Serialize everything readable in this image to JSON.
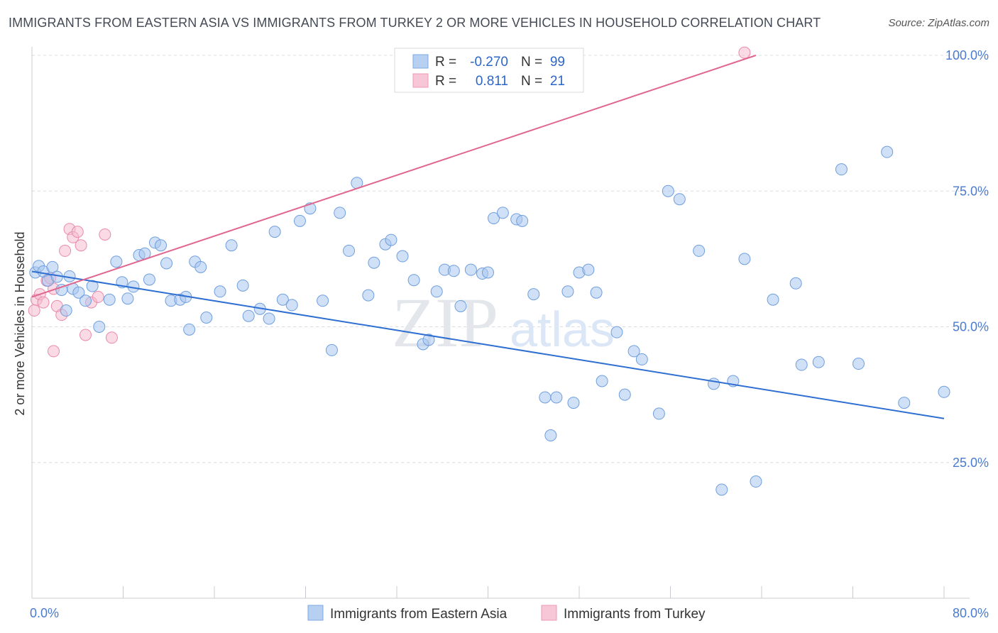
{
  "header": {
    "title": "IMMIGRANTS FROM EASTERN ASIA VS IMMIGRANTS FROM TURKEY 2 OR MORE VEHICLES IN HOUSEHOLD CORRELATION CHART",
    "source": "Source: ZipAtlas.com"
  },
  "watermark": {
    "zip": "ZIP",
    "atlas": "atlas"
  },
  "colors": {
    "blue_fill": "#a9c7ee",
    "blue_stroke": "#6f9fde",
    "blue_line": "#2e6fd1",
    "pink_fill": "#f6bcd0",
    "pink_stroke": "#ea8aab",
    "pink_line": "#e0668f",
    "grid": "#d9dde3",
    "tick_text": "#4a7bd0"
  },
  "stats": {
    "r_label": "R =",
    "n_label": "N =",
    "blue": {
      "r": "-0.270",
      "n": "99"
    },
    "pink": {
      "r": "0.811",
      "n": "21"
    }
  },
  "chart_data": {
    "type": "scatter",
    "ylabel": "2 or more Vehicles in Household",
    "xlabel": "",
    "xlim": [
      0,
      80
    ],
    "ylim": [
      0,
      100
    ],
    "x_tick_labels": [
      "0.0%",
      "80.0%"
    ],
    "y_ticks": [
      25,
      50,
      75,
      100
    ],
    "y_tick_labels": [
      "25.0%",
      "50.0%",
      "75.0%",
      "100.0%"
    ],
    "grid": true,
    "legend_position": "bottom-center",
    "series": [
      {
        "name": "Immigrants from Eastern Asia",
        "color": "#6f9fde",
        "trend": {
          "x": [
            0,
            80
          ],
          "y": [
            60.2,
            33.1
          ]
        },
        "points": [
          [
            0.3,
            60
          ],
          [
            0.6,
            61.2
          ],
          [
            1.0,
            60.2
          ],
          [
            1.4,
            58.5
          ],
          [
            1.8,
            61
          ],
          [
            2.2,
            59.2
          ],
          [
            2.6,
            56.8
          ],
          [
            3.0,
            53
          ],
          [
            3.3,
            59.3
          ],
          [
            3.6,
            57
          ],
          [
            4.1,
            56.3
          ],
          [
            4.7,
            54.8
          ],
          [
            5.3,
            57.5
          ],
          [
            5.9,
            50
          ],
          [
            6.8,
            55
          ],
          [
            7.4,
            62
          ],
          [
            7.9,
            58.2
          ],
          [
            8.4,
            55.2
          ],
          [
            8.9,
            57.4
          ],
          [
            9.4,
            63.2
          ],
          [
            9.9,
            63.5
          ],
          [
            10.3,
            58.7
          ],
          [
            10.8,
            65.5
          ],
          [
            11.3,
            65
          ],
          [
            11.8,
            61.7
          ],
          [
            12.2,
            54.8
          ],
          [
            13.0,
            55
          ],
          [
            13.5,
            55.5
          ],
          [
            13.8,
            49.5
          ],
          [
            14.3,
            62
          ],
          [
            14.8,
            61
          ],
          [
            15.3,
            51.7
          ],
          [
            16.5,
            56.5
          ],
          [
            17.5,
            65
          ],
          [
            18.5,
            57.6
          ],
          [
            19.0,
            52
          ],
          [
            20.0,
            53.3
          ],
          [
            20.8,
            51.5
          ],
          [
            21.3,
            67.5
          ],
          [
            22.0,
            55
          ],
          [
            22.8,
            54
          ],
          [
            23.5,
            69.5
          ],
          [
            24.4,
            71.8
          ],
          [
            25.5,
            54.8
          ],
          [
            26.3,
            45.7
          ],
          [
            27.0,
            71
          ],
          [
            27.8,
            64
          ],
          [
            28.5,
            76.5
          ],
          [
            29.5,
            55.8
          ],
          [
            30.0,
            61.8
          ],
          [
            31.0,
            65.2
          ],
          [
            31.5,
            66
          ],
          [
            32.5,
            63
          ],
          [
            33.5,
            58.6
          ],
          [
            34.3,
            46.8
          ],
          [
            34.8,
            47.6
          ],
          [
            35.5,
            56.5
          ],
          [
            36.2,
            60.5
          ],
          [
            37.0,
            60.3
          ],
          [
            37.6,
            53.8
          ],
          [
            38.5,
            60.5
          ],
          [
            39.5,
            59.8
          ],
          [
            40.0,
            60
          ],
          [
            40.5,
            70
          ],
          [
            41.3,
            71
          ],
          [
            42.5,
            69.8
          ],
          [
            43.0,
            69.5
          ],
          [
            44.0,
            56
          ],
          [
            45.0,
            37
          ],
          [
            45.5,
            30
          ],
          [
            46.0,
            37
          ],
          [
            47.0,
            56.5
          ],
          [
            47.5,
            36
          ],
          [
            48.0,
            60
          ],
          [
            48.8,
            60.5
          ],
          [
            49.5,
            56.3
          ],
          [
            50.0,
            40
          ],
          [
            51.3,
            49
          ],
          [
            52.0,
            37.5
          ],
          [
            52.8,
            45.5
          ],
          [
            53.5,
            44
          ],
          [
            55.0,
            34
          ],
          [
            55.8,
            75
          ],
          [
            56.8,
            73.5
          ],
          [
            58.5,
            64
          ],
          [
            59.8,
            39.5
          ],
          [
            60.5,
            20
          ],
          [
            61.5,
            40
          ],
          [
            62.5,
            62.5
          ],
          [
            63.5,
            21.5
          ],
          [
            65.0,
            55
          ],
          [
            67.0,
            58
          ],
          [
            67.5,
            43
          ],
          [
            69.0,
            43.5
          ],
          [
            71.0,
            79
          ],
          [
            72.5,
            43.2
          ],
          [
            75.0,
            82.2
          ],
          [
            76.5,
            36
          ],
          [
            80.0,
            38
          ]
        ]
      },
      {
        "name": "Immigrants from Turkey",
        "color": "#ea8aab",
        "trend": {
          "x": [
            0,
            63.5
          ],
          "y": [
            55.5,
            100
          ]
        },
        "points": [
          [
            0.2,
            53.0
          ],
          [
            0.4,
            55
          ],
          [
            0.7,
            56
          ],
          [
            1.0,
            54.5
          ],
          [
            1.3,
            58.5
          ],
          [
            1.6,
            59
          ],
          [
            1.9,
            57
          ],
          [
            2.2,
            53.8
          ],
          [
            2.6,
            52.2
          ],
          [
            2.9,
            64
          ],
          [
            3.3,
            68
          ],
          [
            3.6,
            66.5
          ],
          [
            4.0,
            67.5
          ],
          [
            4.3,
            65
          ],
          [
            4.7,
            48.5
          ],
          [
            5.2,
            54.5
          ],
          [
            5.8,
            55.5
          ],
          [
            6.4,
            67
          ],
          [
            7.0,
            48
          ],
          [
            1.9,
            45.5
          ],
          [
            62.5,
            100.5
          ]
        ]
      }
    ]
  },
  "legend_bottom": {
    "blue_label": "Immigrants from Eastern Asia",
    "pink_label": "Immigrants from Turkey"
  }
}
